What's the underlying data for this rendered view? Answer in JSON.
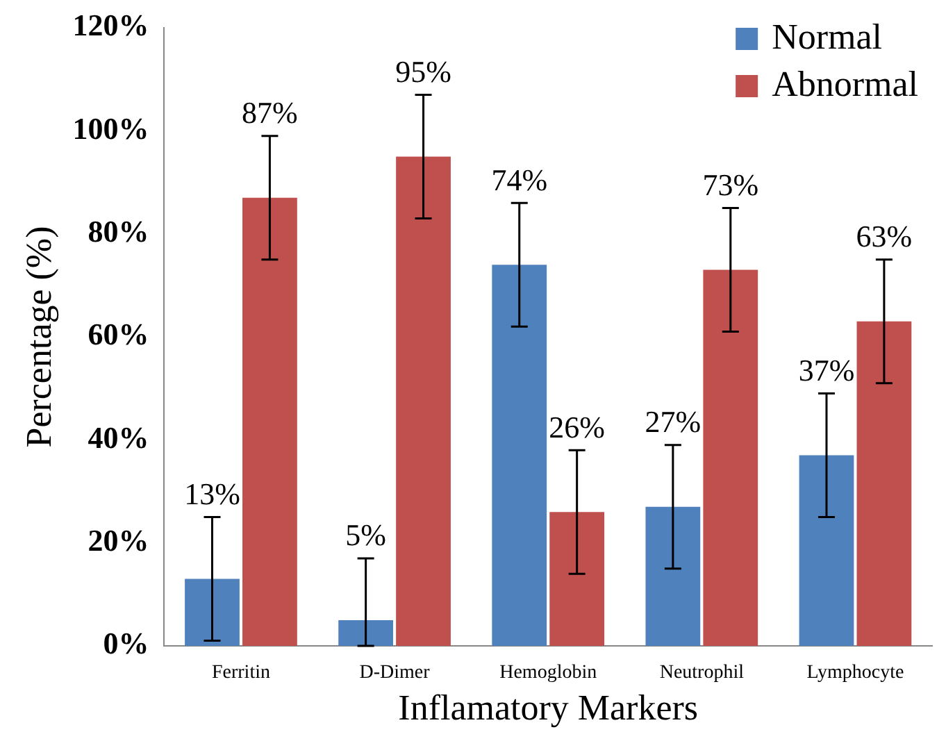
{
  "chart_data": {
    "type": "bar",
    "xlabel": "Inflamatory Markers",
    "ylabel": "Percentage (%)",
    "categories": [
      "Ferritin",
      "D-Dimer",
      "Hemoglobin",
      "Neutrophil",
      "Lymphocyte"
    ],
    "series": [
      {
        "name": "Normal",
        "color": "#4f81bd",
        "values": [
          13,
          5,
          74,
          27,
          37
        ],
        "errors": [
          12,
          [
            0,
            17
          ],
          12,
          12,
          12
        ],
        "value_labels": [
          "13%",
          "5%",
          "74%",
          "27%",
          "37%"
        ]
      },
      {
        "name": "Abnormal",
        "color": "#c0504d",
        "values": [
          87,
          95,
          26,
          73,
          63
        ],
        "errors": [
          12,
          12,
          12,
          12,
          12
        ],
        "value_labels": [
          "87%",
          "95%",
          "26%",
          "73%",
          "63%"
        ]
      }
    ],
    "ylim": [
      0,
      120
    ],
    "yticks": [
      {
        "value": 0,
        "label": "0%"
      },
      {
        "value": 20,
        "label": "20%"
      },
      {
        "value": 40,
        "label": "40%"
      },
      {
        "value": 60,
        "label": "60%"
      },
      {
        "value": 80,
        "label": "80%"
      },
      {
        "value": 100,
        "label": "100%"
      },
      {
        "value": 120,
        "label": "120%"
      }
    ],
    "grid": false,
    "legend": "top right"
  }
}
